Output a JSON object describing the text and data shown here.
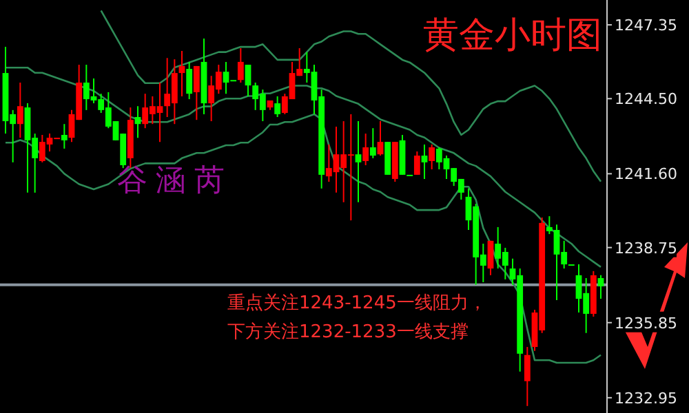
{
  "chart_data": {
    "type": "candlestick",
    "title": "黄金小时图",
    "categories": [
      null,
      null,
      null,
      null,
      null,
      null,
      null,
      null,
      null,
      null,
      null,
      null,
      null,
      null,
      null,
      null,
      null,
      null,
      null,
      null,
      null,
      null,
      null,
      null,
      null,
      null,
      null,
      null,
      null,
      null,
      null,
      null,
      null,
      null,
      null,
      null,
      null,
      null,
      null,
      null,
      null,
      null,
      null,
      null,
      null,
      null,
      null,
      null,
      null,
      null,
      null,
      null,
      null,
      null,
      null,
      null,
      null,
      null,
      null,
      null,
      null,
      null,
      null,
      null,
      null,
      null,
      null,
      null,
      null,
      null,
      null,
      null,
      null,
      null,
      null,
      null,
      null,
      null,
      null,
      null,
      null,
      null
    ],
    "ohlc": [
      [
        1245.49,
        1246.5,
        1243.15,
        1243.63
      ],
      [
        1243.9,
        1244.06,
        1242.04,
        1243.52
      ],
      [
        1243.52,
        1245.12,
        1242.99,
        1244.21
      ],
      [
        1244.16,
        1244.32,
        1240.87,
        1242.89
      ],
      [
        1242.99,
        1243.15,
        1240.87,
        1242.2
      ],
      [
        1242.09,
        1243.1,
        1242.04,
        1242.83
      ],
      [
        1242.73,
        1243.15,
        1242.46,
        1242.99
      ],
      [
        1242.99,
        1242.99,
        1242.99,
        1242.99
      ],
      [
        1243.1,
        1243.52,
        1242.57,
        1242.89
      ],
      [
        1242.99,
        1244.06,
        1242.83,
        1243.9
      ],
      [
        1243.68,
        1245.81,
        1243.68,
        1245.12
      ],
      [
        1245.12,
        1245.81,
        1244.06,
        1244.48
      ],
      [
        1244.59,
        1245.28,
        1244.32,
        1244.43
      ],
      [
        1244.48,
        1244.69,
        1243.95,
        1244.06
      ],
      [
        1244.16,
        1244.75,
        1243.36,
        1243.42
      ],
      [
        1243.63,
        1243.63,
        1242.89,
        1242.89
      ],
      [
        1243.15,
        1243.15,
        1241.82,
        1241.93
      ],
      [
        1242.2,
        1244.16,
        1241.82,
        1243.68
      ],
      [
        1243.79,
        1244.21,
        1242.99,
        1243.52
      ],
      [
        1243.52,
        1244.69,
        1243.36,
        1244.16
      ],
      [
        1243.9,
        1244.59,
        1243.52,
        1244.21
      ],
      [
        1243.95,
        1245.12,
        1242.83,
        1244.21
      ],
      [
        1244.21,
        1246.07,
        1243.79,
        1244.69
      ],
      [
        1244.32,
        1246.02,
        1243.52,
        1245.49
      ],
      [
        1245.49,
        1246.34,
        1244.59,
        1245.76
      ],
      [
        1245.65,
        1245.92,
        1244.48,
        1244.69
      ],
      [
        1244.75,
        1245.76,
        1243.68,
        1245.76
      ],
      [
        1245.92,
        1246.82,
        1243.9,
        1244.32
      ],
      [
        1244.32,
        1245.38,
        1243.63,
        1245.01
      ],
      [
        1244.85,
        1245.81,
        1244.69,
        1245.54
      ],
      [
        1245.54,
        1245.92,
        1244.69,
        1245.12
      ],
      [
        1245.22,
        1245.22,
        1245.22,
        1245.22
      ],
      [
        1245.22,
        1246.45,
        1245.12,
        1245.92
      ],
      [
        1245.81,
        1245.81,
        1244.59,
        1245.01
      ],
      [
        1245.01,
        1245.12,
        1244.06,
        1244.48
      ],
      [
        1244.69,
        1244.85,
        1243.63,
        1244.06
      ],
      [
        1244.16,
        1244.43,
        1244.06,
        1244.43
      ],
      [
        1244.32,
        1244.59,
        1243.79,
        1243.9
      ],
      [
        1243.95,
        1244.69,
        1243.9,
        1244.59
      ],
      [
        1244.48,
        1245.92,
        1244.48,
        1245.49
      ],
      [
        1245.38,
        1246.45,
        1245.38,
        1245.65
      ],
      [
        1245.65,
        1246.29,
        1245.12,
        1245.49
      ],
      [
        1245.54,
        1245.81,
        1243.9,
        1244.43
      ],
      [
        1244.59,
        1244.85,
        1241.03,
        1241.56
      ],
      [
        1241.5,
        1242.73,
        1241.29,
        1241.82
      ],
      [
        1241.66,
        1243.42,
        1240.87,
        1242.35
      ],
      [
        1241.82,
        1243.63,
        1240.5,
        1242.35
      ],
      [
        1242.3,
        1243.9,
        1239.8,
        1242.35
      ],
      [
        1242.35,
        1243.63,
        1240.5,
        1242.04
      ],
      [
        1242.09,
        1243.15,
        1241.93,
        1242.62
      ],
      [
        1242.62,
        1243.36,
        1242.2,
        1242.3
      ],
      [
        1242.35,
        1243.63,
        1242.3,
        1242.83
      ],
      [
        1242.83,
        1242.83,
        1241.56,
        1241.56
      ],
      [
        1241.4,
        1242.83,
        1241.29,
        1242.83
      ],
      [
        1242.89,
        1243.1,
        1241.56,
        1241.56
      ],
      [
        1241.56,
        1241.56,
        1241.56,
        1241.56
      ],
      [
        1241.56,
        1242.46,
        1241.56,
        1242.3
      ],
      [
        1242.3,
        1242.73,
        1241.4,
        1242.04
      ],
      [
        1242.09,
        1242.73,
        1241.77,
        1242.62
      ],
      [
        1242.57,
        1242.62,
        1241.77,
        1242.04
      ],
      [
        1242.2,
        1242.3,
        1241.4,
        1241.77
      ],
      [
        1241.82,
        1241.82,
        1241.13,
        1241.29
      ],
      [
        1241.4,
        1241.4,
        1240.6,
        1240.87
      ],
      [
        1240.71,
        1241.03,
        1239.43,
        1239.8
      ],
      [
        1240.34,
        1240.44,
        1237.31,
        1238.37
      ],
      [
        1238.48,
        1238.9,
        1237.41,
        1238.05
      ],
      [
        1237.94,
        1239.01,
        1237.68,
        1239.01
      ],
      [
        1238.9,
        1239.54,
        1237.94,
        1238.32
      ],
      [
        1238.58,
        1238.74,
        1237.52,
        1238.05
      ],
      [
        1237.94,
        1238.32,
        1237.31,
        1237.52
      ],
      [
        1237.68,
        1237.94,
        1233.96,
        1234.65
      ],
      [
        1233.59,
        1234.91,
        1232.63,
        1234.6
      ],
      [
        1234.91,
        1236.35,
        1234.76,
        1236.24
      ],
      [
        1235.55,
        1239.91,
        1235.45,
        1239.7
      ],
      [
        1239.54,
        1239.96,
        1239.27,
        1239.38
      ],
      [
        1239.43,
        1239.64,
        1236.72,
        1238.48
      ],
      [
        1238.58,
        1239.01,
        1237.94,
        1238.1
      ],
      [
        1238.1,
        1238.1,
        1238.1,
        1238.1
      ],
      [
        1237.68,
        1238.1,
        1236.24,
        1236.77
      ],
      [
        1236.99,
        1237.57,
        1235.45,
        1236.19
      ],
      [
        1236.19,
        1237.84,
        1236.08,
        1237.68
      ],
      [
        1237.57,
        1237.68,
        1236.77,
        1237.25
      ]
    ],
    "colors": [
      "#00ff00",
      "#00ff00",
      "#ff0000",
      "#00ff00",
      "#00ff00",
      "#ff0000",
      "#ff0000",
      "#ff0000",
      "#00ff00",
      "#ff0000",
      "#ff0000",
      "#00ff00",
      "#00ff00",
      "#00ff00",
      "#00ff00",
      "#00ff00",
      "#00ff00",
      "#ff0000",
      "#00ff00",
      "#ff0000",
      "#ff0000",
      "#ff0000",
      "#ff0000",
      "#ff0000",
      "#ff0000",
      "#00ff00",
      "#ff0000",
      "#00ff00",
      "#ff0000",
      "#ff0000",
      "#00ff00",
      "#00ff00",
      "#ff0000",
      "#00ff00",
      "#00ff00",
      "#00ff00",
      "#ff0000",
      "#00ff00",
      "#ff0000",
      "#ff0000",
      "#ff0000",
      "#00ff00",
      "#00ff00",
      "#00ff00",
      "#ff0000",
      "#ff0000",
      "#ff0000",
      "#ff0000",
      "#00ff00",
      "#ff0000",
      "#00ff00",
      "#ff0000",
      "#00ff00",
      "#ff0000",
      "#00ff00",
      "#00ff00",
      "#ff0000",
      "#00ff00",
      "#ff0000",
      "#00ff00",
      "#00ff00",
      "#00ff00",
      "#00ff00",
      "#00ff00",
      "#00ff00",
      "#00ff00",
      "#ff0000",
      "#00ff00",
      "#00ff00",
      "#00ff00",
      "#00ff00",
      "#ff0000",
      "#ff0000",
      "#ff0000",
      "#00ff00",
      "#00ff00",
      "#00ff00",
      "#00ff00",
      "#00ff00",
      "#00ff00",
      "#ff0000",
      "#00ff00"
    ],
    "series": [
      {
        "type": "line",
        "color": "#2e8b57",
        "values": [
          null,
          null,
          null,
          null,
          null,
          null,
          null,
          null,
          null,
          null,
          null,
          null,
          null,
          1247.9,
          1247.4,
          1246.9,
          1246.4,
          1245.9,
          1245.4,
          1245.1,
          1245.1,
          1245.1,
          1245.3,
          1245.7,
          1245.8,
          1245.9,
          1246.0,
          1246.1,
          1246.2,
          1246.3,
          1246.3,
          1246.4,
          1246.5,
          1246.5,
          1246.5,
          1246.6,
          1246.3,
          1246.0,
          1246.0,
          1246.0,
          1246.0,
          1246.3,
          1246.6,
          1246.7,
          1246.9,
          1247.0,
          1247.1,
          1247.1,
          1247.0,
          1247.0,
          1246.8,
          1246.6,
          1246.4,
          1246.2,
          1246.0,
          1245.9,
          1245.7,
          1245.5,
          1245.2,
          1244.9,
          1244.3,
          1243.6,
          1243.1,
          1243.3,
          1243.7,
          1244.1,
          1244.3,
          1244.4,
          1244.4,
          1244.6,
          1244.8,
          1244.9,
          1245.0,
          1244.8,
          1244.5,
          1244.1,
          1243.6,
          1243.1,
          1242.6,
          1242.2,
          1241.7,
          1241.3
        ]
      },
      {
        "type": "line",
        "color": "#2e8b57",
        "values": [
          1245.7,
          1245.7,
          1245.7,
          1245.7,
          1245.5,
          1245.5,
          1245.4,
          1245.3,
          1245.2,
          1245.1,
          1245.0,
          1244.9,
          1244.8,
          1244.6,
          1244.4,
          1244.2,
          1244.0,
          1243.8,
          1243.7,
          1243.6,
          1243.6,
          1243.6,
          1243.6,
          1243.7,
          1243.8,
          1243.9,
          1244.1,
          1244.2,
          1244.2,
          1244.4,
          1244.5,
          1244.5,
          1244.5,
          1244.6,
          1244.6,
          1244.7,
          1244.7,
          1244.8,
          1244.9,
          1245.0,
          1245.0,
          1245.0,
          1244.9,
          1244.9,
          1244.8,
          1244.6,
          1244.5,
          1244.4,
          1244.3,
          1244.1,
          1243.9,
          1243.7,
          1243.6,
          1243.5,
          1243.4,
          1243.3,
          1243.1,
          1243.0,
          1242.8,
          1242.6,
          1242.5,
          1242.4,
          1242.2,
          1242.0,
          1241.9,
          1241.7,
          1241.5,
          1241.2,
          1240.9,
          1240.7,
          1240.5,
          1240.3,
          1240.1,
          1239.8,
          1239.5,
          1239.3,
          1239.1,
          1238.9,
          1238.6,
          1238.4,
          1238.2,
          1238.0
        ]
      },
      {
        "type": "line",
        "color": "#2e8b57",
        "values": [
          1242.8,
          1242.8,
          1242.9,
          1242.8,
          1242.6,
          1242.3,
          1242.1,
          1241.9,
          1241.6,
          1241.4,
          1241.2,
          1241.1,
          1241.0,
          1241.1,
          1241.2,
          1241.4,
          1241.6,
          1241.8,
          1241.9,
          1242.0,
          1242.0,
          1242.0,
          1242.0,
          1242.0,
          1242.2,
          1242.3,
          1242.4,
          1242.4,
          1242.5,
          1242.6,
          1242.7,
          1242.7,
          1242.8,
          1242.8,
          1243.0,
          1243.2,
          1243.5,
          1243.5,
          1243.6,
          1243.6,
          1243.7,
          1243.8,
          1243.9,
          1243.7,
          1242.7,
          1241.9,
          1241.7,
          1241.5,
          1241.3,
          1241.2,
          1241.0,
          1240.9,
          1240.7,
          1240.6,
          1240.5,
          1240.4,
          1240.2,
          1240.2,
          1240.2,
          1240.2,
          1240.3,
          1240.7,
          1241.1,
          1241.1,
          1240.6,
          1239.5,
          1238.9,
          1238.1,
          1237.8,
          1237.4,
          1236.9,
          1235.6,
          1234.4,
          1234.4,
          1234.4,
          1234.3,
          1234.3,
          1234.3,
          1234.3,
          1234.3,
          1234.4,
          1234.6
        ]
      }
    ],
    "ylim": [
      1232.36,
      1248.31
    ],
    "yticks": [
      1232.95,
      1235.85,
      1238.75,
      {
        "value": 1241.6,
        "label": "1241.60"
      },
      {
        "value": 1244.5,
        "label": "1244.50"
      },
      1247.35
    ],
    "tick_labels": "y",
    "grid": false,
    "ref_lines": [
      {
        "axis": "y",
        "value": 1237.31,
        "color": "#8a96a0"
      }
    ],
    "annotations": [
      "谷涵芮",
      "重点关注1243-1245一线阻力，",
      "下方关注1232-1233一线支撑"
    ]
  }
}
